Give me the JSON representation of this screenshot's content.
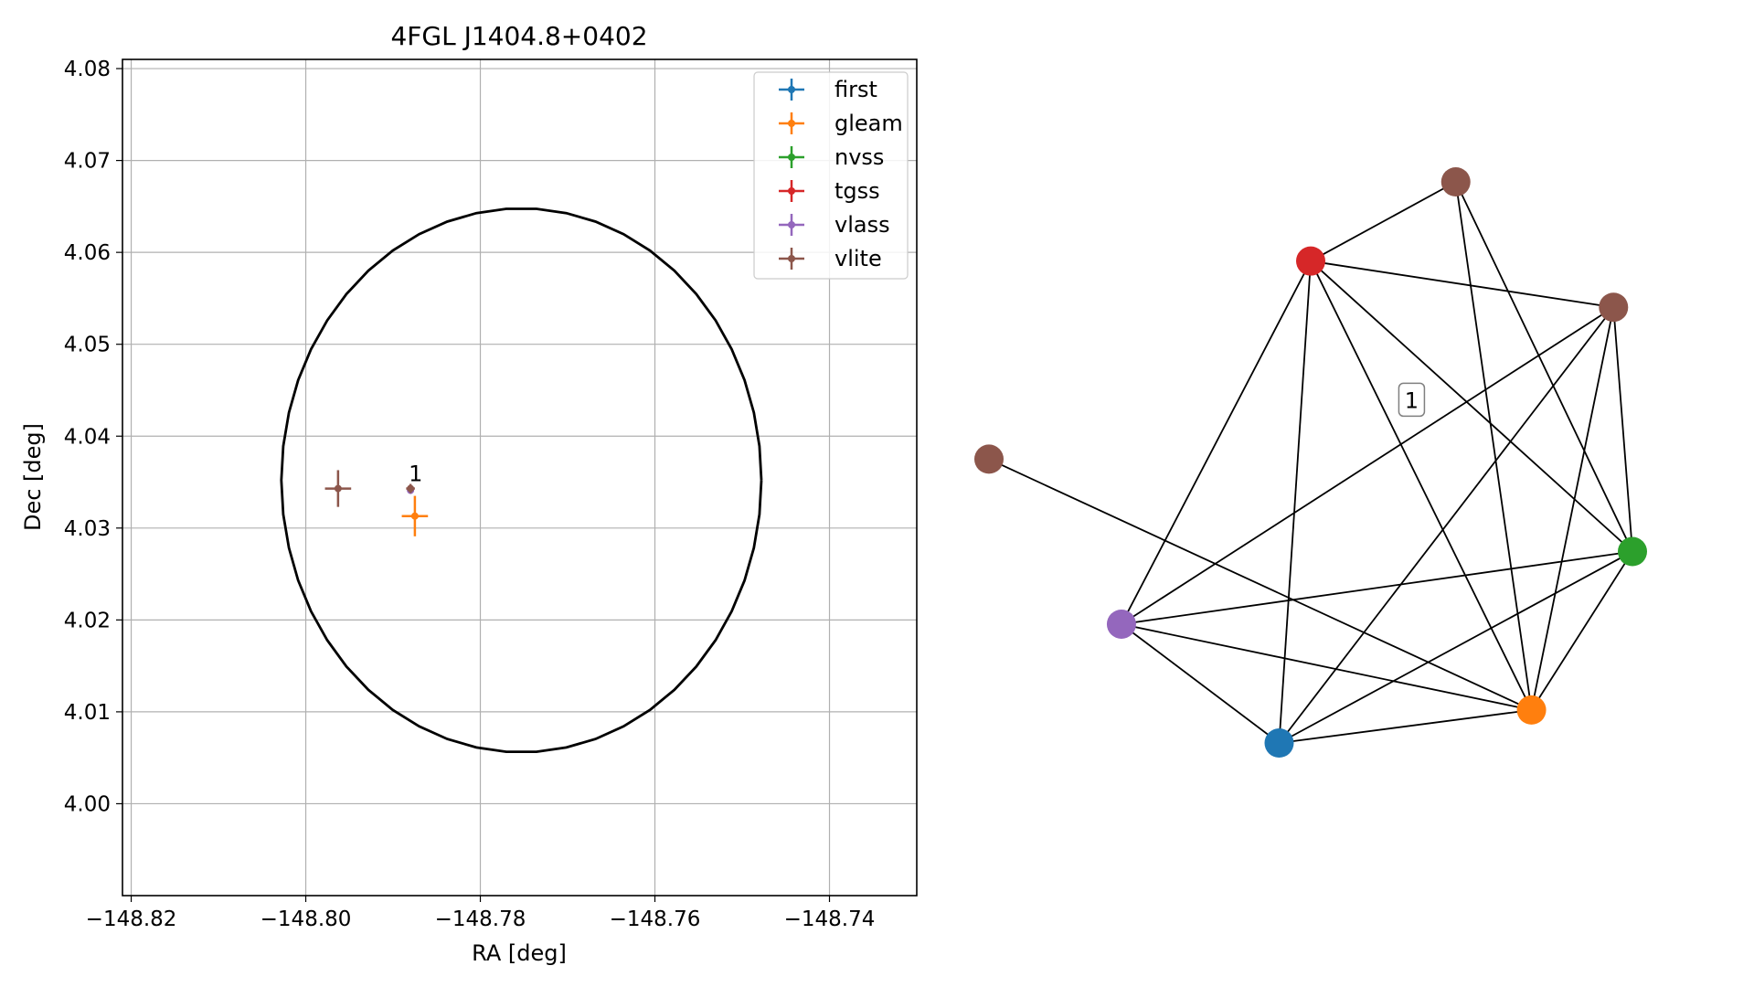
{
  "chart_data": [
    {
      "type": "scatter",
      "title": "4FGL J1404.8+0402",
      "xlabel": "RA [deg]",
      "ylabel": "Dec [deg]",
      "xlim": [
        -148.821,
        -148.73
      ],
      "ylim": [
        3.99,
        4.081
      ],
      "xticks": [
        -148.82,
        -148.8,
        -148.78,
        -148.76,
        -148.74
      ],
      "yticks": [
        4.0,
        4.01,
        4.02,
        4.03,
        4.04,
        4.05,
        4.06,
        4.07,
        4.08
      ],
      "xtick_labels": [
        "−148.82",
        "−148.80",
        "−148.78",
        "−148.76",
        "−148.74"
      ],
      "ytick_labels": [
        "4.00",
        "4.01",
        "4.02",
        "4.03",
        "4.04",
        "4.05",
        "4.06",
        "4.07",
        "4.08"
      ],
      "grid": true,
      "legend_position": "top-right",
      "series": [
        {
          "name": "first",
          "color": "#1f77b4",
          "points": []
        },
        {
          "name": "gleam",
          "color": "#ff7f0e",
          "points": [
            {
              "x": -148.7875,
              "y": 4.0313,
              "xerr": 0.0015,
              "yerr": 0.0022
            }
          ]
        },
        {
          "name": "nvss",
          "color": "#2ca02c",
          "points": []
        },
        {
          "name": "tgss",
          "color": "#d62728",
          "points": []
        },
        {
          "name": "vlass",
          "color": "#9467bd",
          "points": [
            {
              "x": -148.788,
              "y": 4.0341,
              "xerr": 0.0002,
              "yerr": 0.0002
            }
          ]
        },
        {
          "name": "vlite",
          "color": "#8c564b",
          "points": [
            {
              "x": -148.7963,
              "y": 4.0343,
              "xerr": 0.0015,
              "yerr": 0.002
            },
            {
              "x": -148.788,
              "y": 4.0343,
              "xerr": 0.0005,
              "yerr": 0.0005
            }
          ]
        }
      ],
      "ellipse": {
        "center_x": -148.7753,
        "center_y": 4.0352,
        "radius_x": 0.0275,
        "radius_y": 0.0296,
        "color": "#000000"
      },
      "annotations": [
        {
          "text": "1",
          "x": -148.788,
          "y": 4.0345
        }
      ]
    },
    {
      "type": "network",
      "label": "1",
      "nodes": [
        {
          "id": "vlite-a",
          "color": "#8c564b",
          "x": 0.5,
          "y": 0.92
        },
        {
          "id": "tgss",
          "color": "#d62728",
          "x": 0.27,
          "y": 0.8
        },
        {
          "id": "vlite-b",
          "color": "#8c564b",
          "x": 0.75,
          "y": 0.73
        },
        {
          "id": "vlite-c",
          "color": "#8c564b",
          "x": -0.24,
          "y": 0.5
        },
        {
          "id": "nvss",
          "color": "#2ca02c",
          "x": 0.78,
          "y": 0.36
        },
        {
          "id": "vlass",
          "color": "#9467bd",
          "x": -0.03,
          "y": 0.25
        },
        {
          "id": "gleam",
          "color": "#ff7f0e",
          "x": 0.62,
          "y": 0.12
        },
        {
          "id": "first",
          "color": "#1f77b4",
          "x": 0.22,
          "y": 0.07
        }
      ],
      "edges": [
        [
          "tgss",
          "vlite-a"
        ],
        [
          "tgss",
          "vlite-b"
        ],
        [
          "tgss",
          "nvss"
        ],
        [
          "tgss",
          "vlass"
        ],
        [
          "tgss",
          "gleam"
        ],
        [
          "tgss",
          "first"
        ],
        [
          "vlite-a",
          "nvss"
        ],
        [
          "vlite-a",
          "gleam"
        ],
        [
          "vlite-b",
          "nvss"
        ],
        [
          "vlite-b",
          "vlass"
        ],
        [
          "vlite-b",
          "gleam"
        ],
        [
          "vlite-b",
          "first"
        ],
        [
          "vlite-c",
          "gleam"
        ],
        [
          "nvss",
          "vlass"
        ],
        [
          "nvss",
          "gleam"
        ],
        [
          "nvss",
          "first"
        ],
        [
          "vlass",
          "gleam"
        ],
        [
          "vlass",
          "first"
        ],
        [
          "gleam",
          "first"
        ]
      ],
      "label_position": {
        "x": 0.43,
        "y": 0.59
      }
    }
  ]
}
